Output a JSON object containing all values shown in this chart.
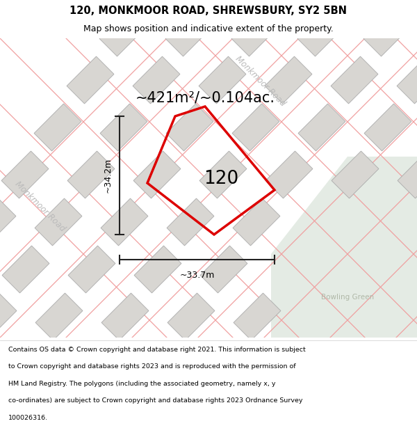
{
  "title_line1": "120, MONKMOOR ROAD, SHREWSBURY, SY2 5BN",
  "title_line2": "Map shows position and indicative extent of the property.",
  "footer_lines": [
    "Contains OS data © Crown copyright and database right 2021. This information is subject",
    "to Crown copyright and database rights 2023 and is reproduced with the permission of",
    "HM Land Registry. The polygons (including the associated geometry, namely x, y",
    "co-ordinates) are subject to Crown copyright and database rights 2023 Ordnance Survey",
    "100026316."
  ],
  "area_label": "~421m²/~0.104ac.",
  "number_label": "120",
  "dim_height": "~34.2m",
  "dim_width": "~33.7m",
  "road_label_upper": "Monkmoor Road",
  "road_label_lower": "Monkmoor Road",
  "bowling_green_label": "Bowling Green",
  "map_bg": "#eeece8",
  "bg_color_green": "#e4ebe4",
  "building_fill": "#d8d6d2",
  "building_edge": "#aaaaaa",
  "plot_outline_color": "#dd0000",
  "dim_line_color": "#222222",
  "road_line_color": "#f0a0a0",
  "road_text_color": "#bbbbbb"
}
